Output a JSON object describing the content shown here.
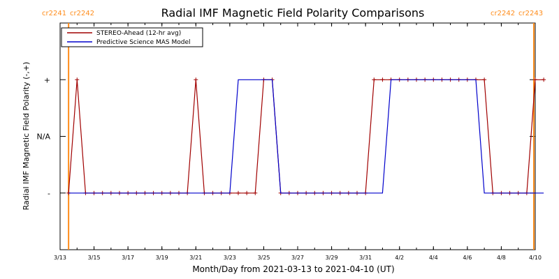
{
  "chart_data": {
    "type": "line",
    "title": "Radial IMF Magnetic Field Polarity Comparisons",
    "xlabel": "Month/Day from 2021-03-13 to 2021-04-10 (UT)",
    "ylabel": "Radial IMF Magnetic Field Polarity (-,+)",
    "x_range": [
      "2021-03-13",
      "2021-04-10"
    ],
    "x_tick_labels": [
      "3/13",
      "3/15",
      "3/17",
      "3/19",
      "3/21",
      "3/23",
      "3/25",
      "3/27",
      "3/29",
      "3/31",
      "4/2",
      "4/4",
      "4/6",
      "4/8",
      "4/10"
    ],
    "x_tick_dates": [
      "2021-03-13",
      "2021-03-15",
      "2021-03-17",
      "2021-03-19",
      "2021-03-21",
      "2021-03-23",
      "2021-03-25",
      "2021-03-27",
      "2021-03-29",
      "2021-03-31",
      "2021-04-02",
      "2021-04-04",
      "2021-04-06",
      "2021-04-08",
      "2021-04-10"
    ],
    "y_categories": [
      "-",
      "N/A",
      "+"
    ],
    "y_values": [
      -1,
      0,
      1
    ],
    "ylim": [
      -2,
      2
    ],
    "legend_position": "top-left",
    "carrington_markers": [
      {
        "date": "2021-03-13T12:00",
        "label_left": "cr2241",
        "label_right": "cr2242",
        "side": "left"
      },
      {
        "date": "2021-04-09T22:00",
        "label_left": "cr2242",
        "label_right": "cr2243",
        "side": "right"
      }
    ],
    "series": [
      {
        "name": "STEREO-Ahead (12-hr avg)",
        "color": "#a00000",
        "marker": "plus",
        "points": [
          [
            "2021-03-13T12:00",
            -1
          ],
          [
            "2021-03-14T00:00",
            1
          ],
          [
            "2021-03-14T12:00",
            -1
          ],
          [
            "2021-03-15T00:00",
            -1
          ],
          [
            "2021-03-15T12:00",
            -1
          ],
          [
            "2021-03-16T00:00",
            -1
          ],
          [
            "2021-03-16T12:00",
            -1
          ],
          [
            "2021-03-17T00:00",
            -1
          ],
          [
            "2021-03-17T12:00",
            -1
          ],
          [
            "2021-03-18T00:00",
            -1
          ],
          [
            "2021-03-18T12:00",
            -1
          ],
          [
            "2021-03-19T00:00",
            -1
          ],
          [
            "2021-03-19T12:00",
            -1
          ],
          [
            "2021-03-20T00:00",
            -1
          ],
          [
            "2021-03-20T12:00",
            -1
          ],
          [
            "2021-03-21T00:00",
            1
          ],
          [
            "2021-03-21T12:00",
            -1
          ],
          [
            "2021-03-22T00:00",
            -1
          ],
          [
            "2021-03-22T12:00",
            -1
          ],
          [
            "2021-03-23T00:00",
            -1
          ],
          [
            "2021-03-23T12:00",
            -1
          ],
          [
            "2021-03-24T00:00",
            -1
          ],
          [
            "2021-03-24T12:00",
            -1
          ],
          [
            "2021-03-25T00:00",
            1
          ],
          [
            "2021-03-25T12:00",
            1
          ],
          [
            "2021-03-26T00:00",
            -1
          ],
          [
            "2021-03-26T12:00",
            -1
          ],
          [
            "2021-03-27T00:00",
            -1
          ],
          [
            "2021-03-27T12:00",
            -1
          ],
          [
            "2021-03-28T00:00",
            -1
          ],
          [
            "2021-03-28T12:00",
            -1
          ],
          [
            "2021-03-29T00:00",
            -1
          ],
          [
            "2021-03-29T12:00",
            -1
          ],
          [
            "2021-03-30T00:00",
            -1
          ],
          [
            "2021-03-30T12:00",
            -1
          ],
          [
            "2021-03-31T00:00",
            -1
          ],
          [
            "2021-03-31T12:00",
            1
          ],
          [
            "2021-04-01T00:00",
            1
          ],
          [
            "2021-04-01T12:00",
            1
          ],
          [
            "2021-04-02T00:00",
            1
          ],
          [
            "2021-04-02T12:00",
            1
          ],
          [
            "2021-04-03T00:00",
            1
          ],
          [
            "2021-04-03T12:00",
            1
          ],
          [
            "2021-04-04T00:00",
            1
          ],
          [
            "2021-04-04T12:00",
            1
          ],
          [
            "2021-04-05T00:00",
            1
          ],
          [
            "2021-04-05T12:00",
            1
          ],
          [
            "2021-04-06T00:00",
            1
          ],
          [
            "2021-04-06T12:00",
            1
          ],
          [
            "2021-04-07T00:00",
            1
          ],
          [
            "2021-04-07T12:00",
            -1
          ],
          [
            "2021-04-08T00:00",
            -1
          ],
          [
            "2021-04-08T12:00",
            -1
          ],
          [
            "2021-04-09T00:00",
            -1
          ],
          [
            "2021-04-09T12:00",
            -1
          ],
          [
            "2021-04-10T00:00",
            1
          ],
          [
            "2021-04-10T12:00",
            1
          ]
        ]
      },
      {
        "name": "Predictive Science MAS Model",
        "color": "#0000cc",
        "marker": "none",
        "points": [
          [
            "2021-03-13T12:00",
            -1
          ],
          [
            "2021-03-23T00:00",
            -1
          ],
          [
            "2021-03-23T12:00",
            1
          ],
          [
            "2021-03-25T12:00",
            1
          ],
          [
            "2021-03-26T00:00",
            -1
          ],
          [
            "2021-04-01T00:00",
            -1
          ],
          [
            "2021-04-01T12:00",
            1
          ],
          [
            "2021-04-06T12:00",
            1
          ],
          [
            "2021-04-07T00:00",
            -1
          ],
          [
            "2021-04-10T12:00",
            -1
          ]
        ]
      }
    ]
  }
}
